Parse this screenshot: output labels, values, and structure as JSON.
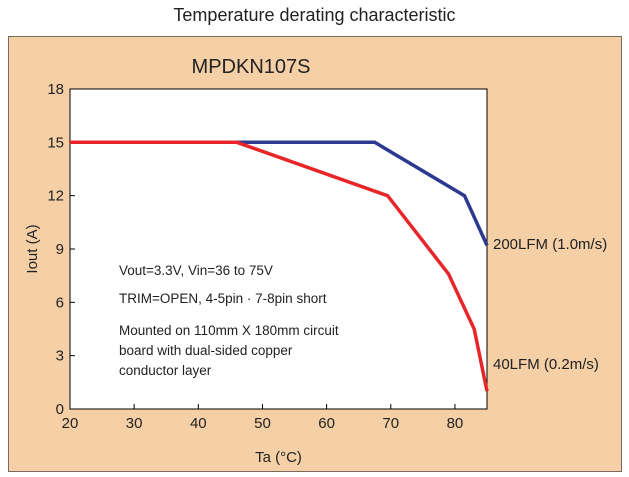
{
  "page_title": "Temperature derating characteristic",
  "chart_data": {
    "type": "line",
    "title": "MPDKN107S",
    "xlabel": "Ta (°C)",
    "ylabel": "Iout (A)",
    "xlim": [
      20,
      85
    ],
    "ylim": [
      0,
      18
    ],
    "xticks": [
      20,
      30,
      40,
      50,
      60,
      70,
      80
    ],
    "yticks": [
      0,
      3,
      6,
      9,
      12,
      15,
      18
    ],
    "grid": false,
    "series": [
      {
        "name": "200LFM (1.0m/s)",
        "color": "#2b3990",
        "points": [
          [
            20,
            15
          ],
          [
            67.5,
            15
          ],
          [
            81.5,
            12
          ],
          [
            85,
            9.2
          ]
        ]
      },
      {
        "name": "40LFM (0.2m/s)",
        "color": "#e8262a",
        "points": [
          [
            20,
            15
          ],
          [
            46,
            15
          ],
          [
            69.5,
            12
          ],
          [
            79,
            7.6
          ],
          [
            83,
            4.5
          ],
          [
            85,
            1.0
          ]
        ]
      }
    ],
    "annotations": [
      "Vout=3.3V, Vin=36 to 75V",
      "TRIM=OPEN, 4-5pin · 7-8pin short",
      "Mounted on 110mm X 180mm circuit",
      "board with dual-sided copper",
      "conductor layer"
    ]
  }
}
